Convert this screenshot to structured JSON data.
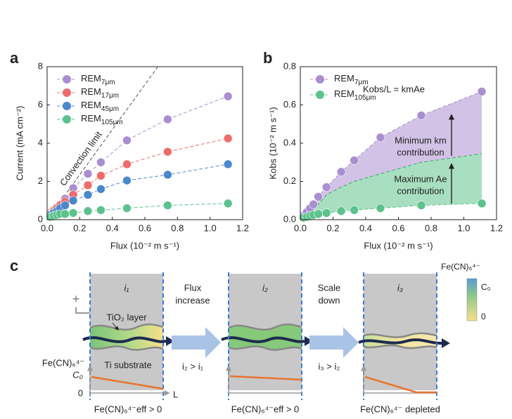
{
  "panel_labels": [
    "a",
    "b",
    "c"
  ],
  "chart_data": [
    {
      "type": "line",
      "xlabel": "Flux (10⁻² m s⁻¹)",
      "ylabel": "Current (mA cm⁻²)",
      "xlim": [
        0,
        1.2
      ],
      "ylim": [
        0,
        8
      ],
      "xticks": [
        {
          "value": 0,
          "label": "0.0"
        },
        0.2,
        0.4,
        0.6,
        0.8,
        {
          "value": 1,
          "label": "1.0"
        },
        1.2
      ],
      "yticks": [
        0,
        2,
        4,
        6,
        8
      ],
      "legend": "upper left",
      "x": [
        0.02,
        0.04,
        0.06,
        0.08,
        0.11,
        0.16,
        0.25,
        0.33,
        0.49,
        0.74,
        1.11
      ],
      "series": [
        {
          "name": "REM7μm",
          "color": "#a98ed0",
          "values": [
            0.35,
            0.5,
            0.65,
            0.8,
            1.1,
            1.65,
            2.4,
            3.0,
            4.15,
            5.25,
            6.45
          ]
        },
        {
          "name": "REM17μm",
          "color": "#ee6b6b",
          "values": [
            0.3,
            0.45,
            0.6,
            0.75,
            0.95,
            1.3,
            1.8,
            2.3,
            2.9,
            3.55,
            4.25
          ]
        },
        {
          "name": "REM45μm",
          "color": "#4a88cc",
          "values": [
            0.25,
            0.35,
            0.45,
            0.6,
            0.75,
            1.0,
            1.3,
            1.6,
            2.05,
            2.35,
            2.9
          ]
        },
        {
          "name": "REM105μm",
          "color": "#5cc28c",
          "values": [
            0.15,
            0.2,
            0.25,
            0.3,
            0.3,
            0.35,
            0.45,
            0.5,
            0.6,
            0.75,
            0.85
          ]
        }
      ],
      "reference_line": {
        "label": "Convection limit",
        "color": "#555555",
        "x": [
          0,
          0.68
        ],
        "values": [
          0,
          8
        ]
      }
    },
    {
      "type": "area",
      "xlabel": "Flux (10⁻² m s⁻¹)",
      "ylabel": "Kobs (10⁻² m s⁻¹)",
      "xlim": [
        0,
        1.2
      ],
      "ylim": [
        0,
        0.8
      ],
      "xticks": [
        {
          "value": 0,
          "label": "0.0"
        },
        0.2,
        0.4,
        0.6,
        0.8,
        {
          "value": 1,
          "label": "1.0"
        },
        1.2
      ],
      "yticks": [
        {
          "value": 0,
          "label": "0.0"
        },
        0.2,
        0.4,
        0.6,
        0.8
      ],
      "legend": "upper left",
      "x": [
        0.02,
        0.04,
        0.06,
        0.08,
        0.11,
        0.16,
        0.25,
        0.33,
        0.49,
        0.74,
        1.11
      ],
      "series": [
        {
          "name": "REM7μm",
          "color": "#a98ed0",
          "values": [
            0.02,
            0.04,
            0.06,
            0.08,
            0.12,
            0.17,
            0.25,
            0.31,
            0.43,
            0.545,
            0.67
          ]
        },
        {
          "name": "REM105μm",
          "color": "#5cc28c",
          "values": [
            0.01,
            0.015,
            0.02,
            0.025,
            0.03,
            0.035,
            0.045,
            0.05,
            0.06,
            0.075,
            0.085
          ]
        }
      ],
      "boundary": {
        "x": [
          0.02,
          0.04,
          0.06,
          0.08,
          0.11,
          0.16,
          0.25,
          0.33,
          0.49,
          0.74,
          1.11
        ],
        "values": [
          0.02,
          0.035,
          0.05,
          0.06,
          0.08,
          0.13,
          0.17,
          0.2,
          0.24,
          0.3,
          0.345
        ],
        "upper_color": "#d2c2e6",
        "lower_color": "#a9dfc1"
      },
      "annotations": {
        "equation": "Kobs/L = kmAe",
        "min_label": [
          "Minimum km",
          "contribution"
        ],
        "max_label": [
          "Maximum Ae",
          "contribution"
        ]
      }
    }
  ],
  "diagram": {
    "colorbar": {
      "title": "Fe(CN)₆⁴⁻",
      "max": "C₀",
      "min": "0"
    },
    "plus": "+",
    "layer_label": "TiO₂ layer",
    "substrate_label": "Ti substrate",
    "profile": {
      "species": "Fe(CN)₆⁴⁻",
      "c0": "C₀",
      "zero": "0",
      "axis": "L"
    },
    "panels": [
      {
        "current": "i₁",
        "bottom": "Fe(CN)₆⁴⁻eff > 0"
      },
      {
        "current": "i₂",
        "bottom": "Fe(CN)₆⁴⁻eff > 0"
      },
      {
        "current": "i₃",
        "bottom": "Fe(CN)₆⁴⁻ depleted"
      }
    ],
    "steps": [
      {
        "lines": [
          "Flux",
          "increase"
        ],
        "relation": "i₂ > i₁"
      },
      {
        "lines": [
          "Scale",
          "down"
        ],
        "relation": "i₃ > i₂"
      }
    ]
  }
}
